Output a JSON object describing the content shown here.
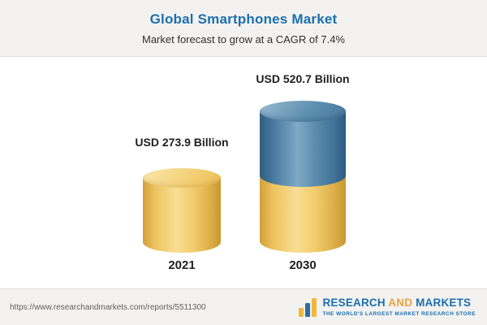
{
  "header": {
    "title": "Global Smartphones Market",
    "subtitle": "Market forecast to grow at a CAGR of 7.4%"
  },
  "chart_data": {
    "type": "bar",
    "title": "Global Smartphones Market",
    "subtitle": "Market forecast to grow at a CAGR of 7.4%",
    "unit": "USD Billion",
    "cagr_percent": 7.4,
    "categories": [
      "2021",
      "2030"
    ],
    "values": [
      273.9,
      520.7
    ],
    "value_labels": [
      "USD 273.9 Billion",
      "USD 520.7 Billion"
    ],
    "legend": "none",
    "style": "3D cylinder bars; 2030 bar drawn as yellow base equal to 2021 value with blue increment stacked on top",
    "bar_colors": {
      "bar_2021": "#F2C964",
      "bar_2030_base": "#F2C964",
      "bar_2030_increment": "#4E81A6"
    }
  },
  "footer": {
    "url": "https://www.researchandmarkets.com/reports/5511300",
    "logo": {
      "word1": "RESEARCH",
      "word2": "AND",
      "word3": "MARKETS",
      "tagline": "THE WORLD'S LARGEST MARKET RESEARCH STORE"
    }
  },
  "colors": {
    "title_blue": "#1B6FAE",
    "bar_yellow": "#F2C964",
    "bar_blue": "#4E81A6",
    "logo_gold": "#EFB73E",
    "header_bg": "#F3F2F0"
  }
}
